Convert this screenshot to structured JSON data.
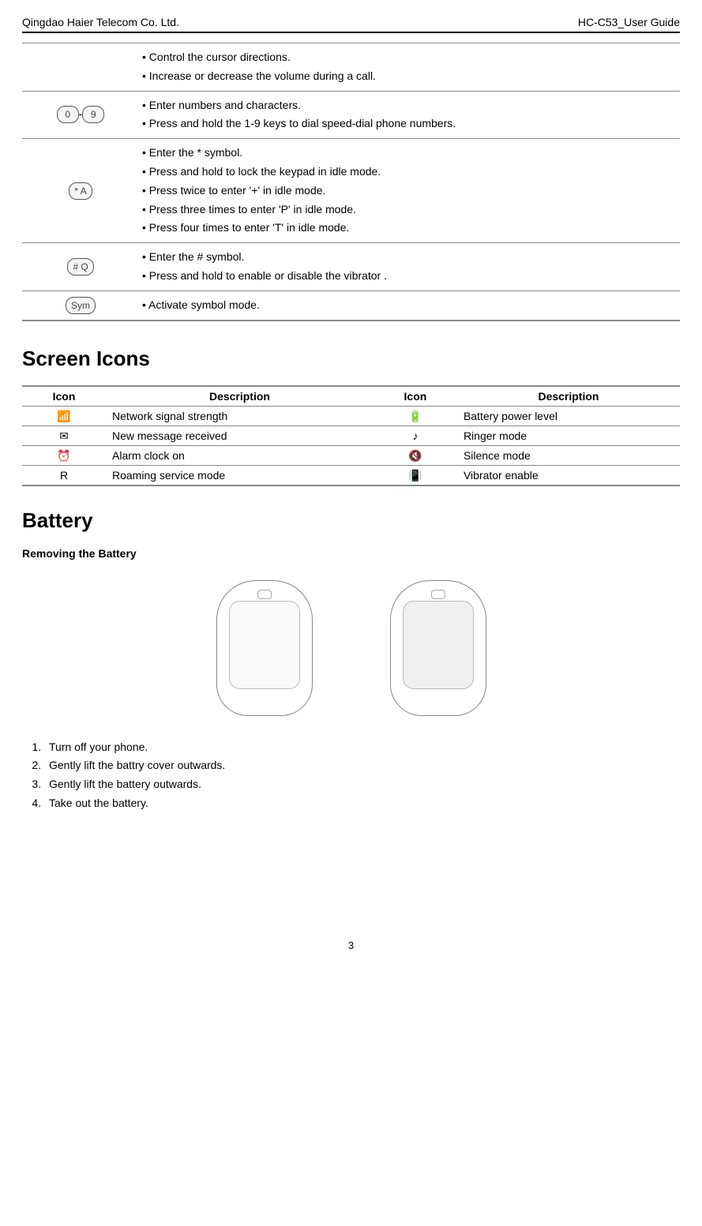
{
  "header": {
    "left": "Qingdao Haier Telecom Co. Ltd.",
    "right": "HC-C53_User Guide"
  },
  "key_functions": [
    {
      "key_icons": [],
      "lines": [
        "• Control the cursor directions.",
        "• Increase or decrease the volume during a call."
      ]
    },
    {
      "key_icons": [
        "0",
        "9"
      ],
      "key_icon_separator": "-",
      "lines": [
        "• Enter numbers and characters.",
        "• Press and hold the 1-9 keys to dial speed-dial phone numbers."
      ]
    },
    {
      "key_icons": [
        "*"
      ],
      "key_icon_sub": "A",
      "lines": [
        "• Enter the * symbol.",
        "• Press and hold to lock the keypad in idle mode.",
        "• Press twice to enter '+' in idle mode.",
        "• Press three times to enter 'P' in idle mode.",
        "• Press four times to enter 'T' in idle mode."
      ]
    },
    {
      "key_icons": [
        "#"
      ],
      "key_icon_sub": "Q",
      "lines": [
        "• Enter the # symbol.",
        "• Press and hold to enable or disable the vibrator ."
      ]
    },
    {
      "key_icons": [
        "Sym"
      ],
      "lines": [
        "• Activate symbol mode."
      ]
    }
  ],
  "screen_icons_title": "Screen Icons",
  "screen_icons_headers": [
    "Icon",
    "Description",
    "Icon",
    "Description"
  ],
  "screen_icons_rows": [
    {
      "icon1_glyph": "📶",
      "desc1": "Network signal strength",
      "icon2_glyph": "🔋",
      "desc2": "Battery power level"
    },
    {
      "icon1_glyph": "✉",
      "desc1": "New message received",
      "icon2_glyph": "♪",
      "desc2": "Ringer mode"
    },
    {
      "icon1_glyph": "⏰",
      "desc1": "Alarm clock on",
      "icon2_glyph": "🔇",
      "desc2": "Silence mode"
    },
    {
      "icon1_glyph": "R",
      "desc1": "Roaming service mode",
      "icon2_glyph": "📳",
      "desc2": "Vibrator enable"
    }
  ],
  "battery_title": "Battery",
  "battery_subtitle": "Removing the Battery",
  "battery_steps": [
    "Turn off your phone.",
    "Gently lift   the battry cover outwards.",
    "Gently lift   the battery outwards.",
    "Take out the battery."
  ],
  "page_number": "3",
  "colors": {
    "text": "#000000",
    "rule": "#000000",
    "row_border": "#888888",
    "key_border": "#555555",
    "key_bg": "#f5f5f5",
    "phone_border": "#888888"
  }
}
